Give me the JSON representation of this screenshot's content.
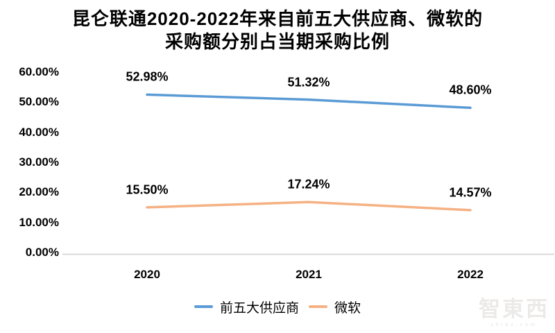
{
  "title": {
    "line1": "昆仑联通2020-2022年来自前五大供应商、微软的",
    "line2": "采购额分别占当期采购比例"
  },
  "chart_data": {
    "type": "line",
    "categories": [
      "2020",
      "2021",
      "2022"
    ],
    "series": [
      {
        "name": "前五大供应商",
        "color": "#5B9BD5",
        "values": [
          52.98,
          51.32,
          48.6
        ],
        "labels": [
          "52.98%",
          "51.32%",
          "48.60%"
        ]
      },
      {
        "name": "微软",
        "color": "#F5B183",
        "values": [
          15.5,
          17.24,
          14.57
        ],
        "labels": [
          "15.50%",
          "17.24%",
          "14.57%"
        ]
      }
    ],
    "y_axis": {
      "min": 0,
      "max": 60,
      "tick_step": 10,
      "format": "percent",
      "ticks": [
        {
          "label": "60.00%",
          "value": 60
        },
        {
          "label": "50.00%",
          "value": 50
        },
        {
          "label": "40.00%",
          "value": 40
        },
        {
          "label": "30.00%",
          "value": 30
        },
        {
          "label": "20.00%",
          "value": 20
        },
        {
          "label": "10.00%",
          "value": 10
        },
        {
          "label": "0.00%",
          "value": 0
        }
      ]
    },
    "x_axis": {
      "labels": [
        "2020",
        "2021",
        "2022"
      ]
    },
    "grid": false,
    "legend_position": "bottom",
    "axis_color": "#D9D9D9"
  },
  "watermark": {
    "logo": "智東西",
    "domain": "zhidx.com"
  }
}
